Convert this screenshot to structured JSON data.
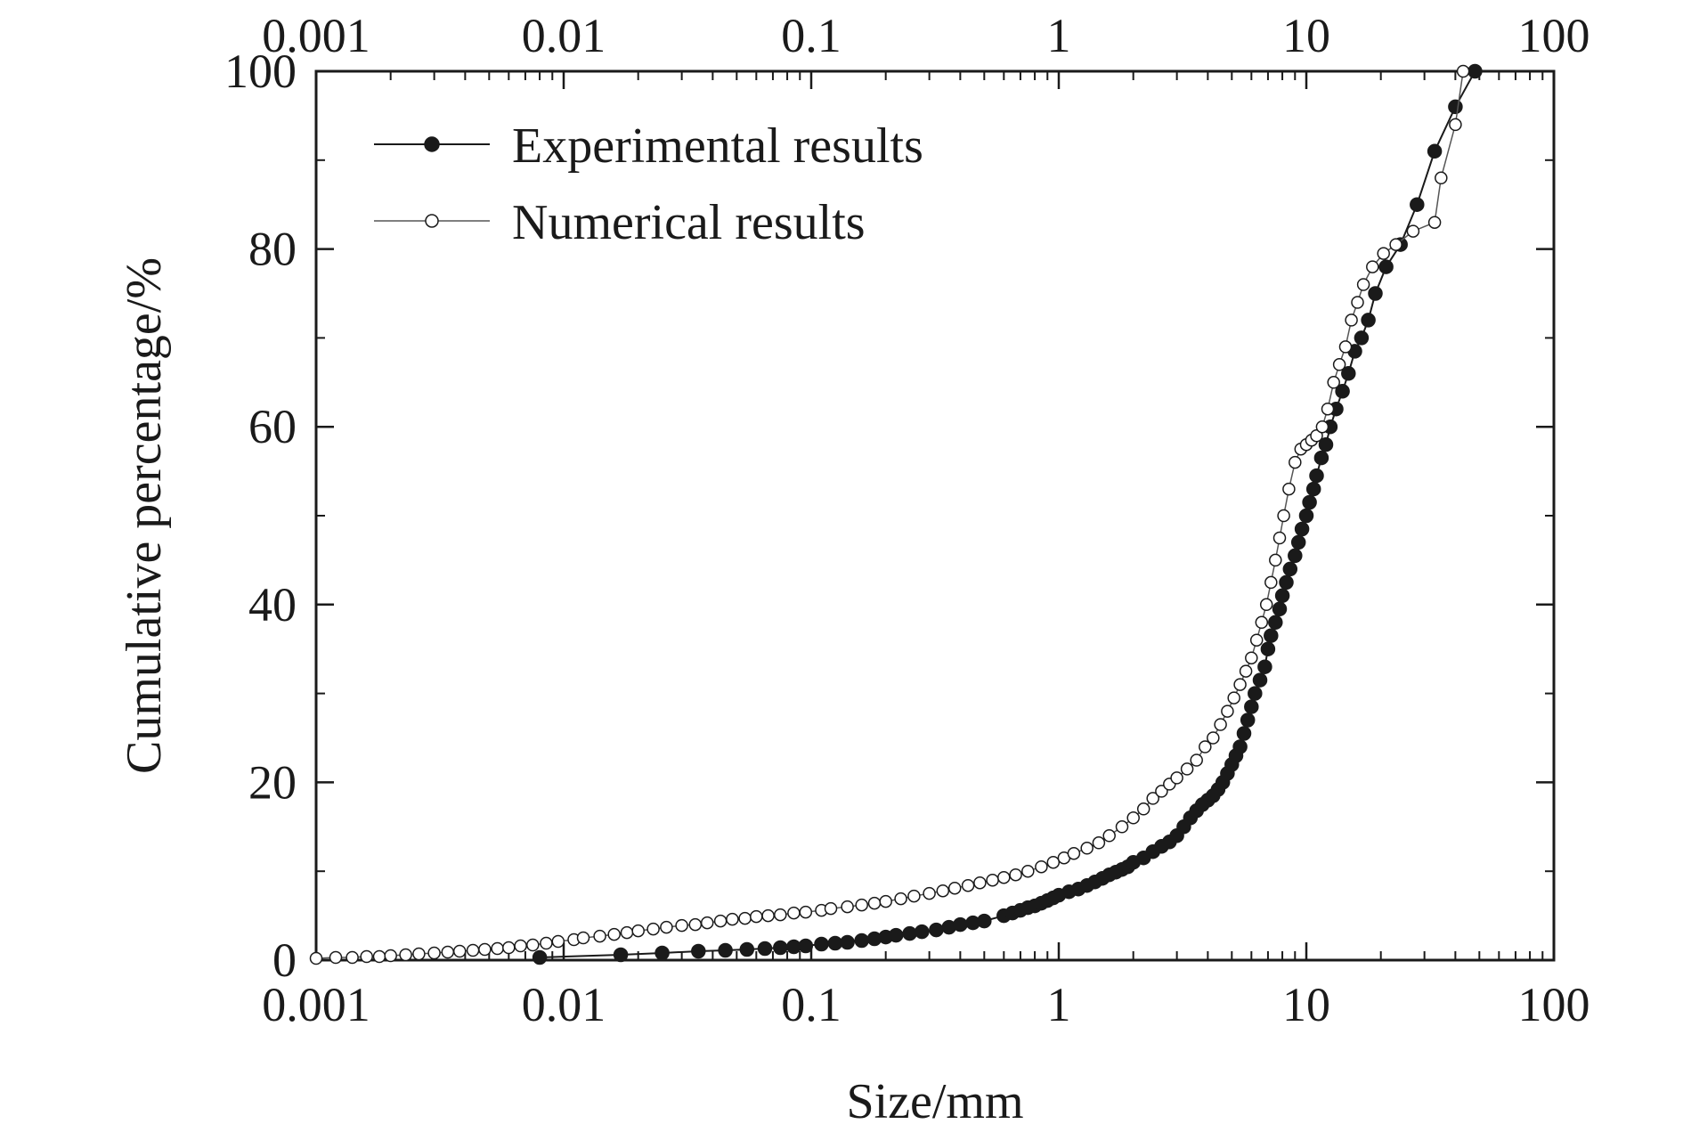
{
  "chart_data": {
    "type": "scatter",
    "title": "",
    "xlabel": "Size/mm",
    "ylabel": "Cumulative percentage/%",
    "x_scale": "log",
    "xlim": [
      0.001,
      100
    ],
    "ylim": [
      0,
      100
    ],
    "x_ticks": [
      "0.001",
      "0.01",
      "0.1",
      "1",
      "10",
      "100"
    ],
    "y_ticks": [
      "0",
      "20",
      "40",
      "60",
      "80",
      "100"
    ],
    "top_axis_labels": true,
    "grid": false,
    "legend_position": "top-left",
    "series": [
      {
        "name": "Experimental results",
        "marker": "filled-circle",
        "color": "#1a1a1a",
        "x": [
          0.008,
          0.017,
          0.025,
          0.035,
          0.045,
          0.055,
          0.065,
          0.075,
          0.085,
          0.095,
          0.11,
          0.125,
          0.14,
          0.16,
          0.18,
          0.2,
          0.22,
          0.25,
          0.28,
          0.32,
          0.36,
          0.4,
          0.45,
          0.5,
          0.6,
          0.65,
          0.7,
          0.75,
          0.8,
          0.85,
          0.9,
          0.95,
          1.0,
          1.1,
          1.2,
          1.3,
          1.4,
          1.5,
          1.6,
          1.7,
          1.8,
          1.9,
          2.0,
          2.2,
          2.4,
          2.6,
          2.8,
          3.0,
          3.2,
          3.4,
          3.6,
          3.8,
          4.0,
          4.2,
          4.4,
          4.6,
          4.8,
          5.0,
          5.2,
          5.4,
          5.6,
          5.8,
          6.0,
          6.2,
          6.5,
          6.8,
          7.0,
          7.2,
          7.5,
          7.8,
          8.0,
          8.3,
          8.6,
          9.0,
          9.3,
          9.6,
          10.0,
          10.3,
          10.7,
          11.0,
          11.5,
          12.0,
          12.5,
          13.2,
          14.0,
          14.8,
          15.7,
          16.7,
          17.8,
          19.0,
          21.0,
          24.0,
          28.0,
          33.0,
          40.0,
          48.0
        ],
        "y": [
          0.3,
          0.6,
          0.8,
          1.0,
          1.1,
          1.2,
          1.3,
          1.4,
          1.5,
          1.6,
          1.8,
          1.9,
          2.0,
          2.2,
          2.4,
          2.6,
          2.8,
          3.0,
          3.2,
          3.4,
          3.7,
          4.0,
          4.2,
          4.4,
          5.0,
          5.3,
          5.6,
          5.9,
          6.1,
          6.4,
          6.7,
          7.0,
          7.3,
          7.7,
          8.0,
          8.4,
          8.8,
          9.2,
          9.6,
          9.9,
          10.2,
          10.5,
          11.0,
          11.5,
          12.2,
          12.8,
          13.3,
          14.0,
          15.0,
          16.0,
          16.8,
          17.5,
          18.0,
          18.5,
          19.2,
          20.0,
          21.0,
          22.0,
          23.0,
          24.0,
          25.5,
          27.0,
          28.5,
          30.0,
          31.5,
          33.0,
          35.0,
          36.5,
          38.0,
          39.5,
          41.0,
          42.5,
          44.0,
          45.5,
          47.0,
          48.5,
          50.0,
          51.5,
          53.0,
          54.5,
          56.5,
          58.0,
          60.0,
          62.0,
          64.0,
          66.0,
          68.5,
          70.0,
          72.0,
          75.0,
          78.0,
          80.5,
          85.0,
          91.0,
          96.0,
          100.0
        ]
      },
      {
        "name": "Numerical results",
        "marker": "open-circle",
        "color": "#1a1a1a",
        "x": [
          0.001,
          0.0012,
          0.0014,
          0.0016,
          0.0018,
          0.002,
          0.0023,
          0.0026,
          0.003,
          0.0034,
          0.0038,
          0.0043,
          0.0048,
          0.0054,
          0.006,
          0.0067,
          0.0075,
          0.0085,
          0.0095,
          0.011,
          0.012,
          0.014,
          0.016,
          0.018,
          0.02,
          0.023,
          0.026,
          0.03,
          0.034,
          0.038,
          0.043,
          0.048,
          0.054,
          0.06,
          0.067,
          0.075,
          0.085,
          0.095,
          0.11,
          0.12,
          0.14,
          0.16,
          0.18,
          0.2,
          0.23,
          0.26,
          0.3,
          0.34,
          0.38,
          0.43,
          0.48,
          0.54,
          0.6,
          0.67,
          0.75,
          0.85,
          0.95,
          1.05,
          1.15,
          1.3,
          1.45,
          1.6,
          1.8,
          2.0,
          2.2,
          2.4,
          2.6,
          2.8,
          3.0,
          3.3,
          3.6,
          3.9,
          4.2,
          4.5,
          4.8,
          5.1,
          5.4,
          5.7,
          6.0,
          6.3,
          6.6,
          6.9,
          7.2,
          7.5,
          7.8,
          8.1,
          8.5,
          9.0,
          9.5,
          10.0,
          10.5,
          11.0,
          11.6,
          12.2,
          12.9,
          13.6,
          14.4,
          15.2,
          16.1,
          17.0,
          18.5,
          20.5,
          23.0,
          27.0,
          33.0,
          35.0,
          40.0,
          43.0
        ],
        "y": [
          0.2,
          0.3,
          0.3,
          0.4,
          0.4,
          0.5,
          0.6,
          0.7,
          0.8,
          0.9,
          1.0,
          1.1,
          1.2,
          1.3,
          1.4,
          1.6,
          1.7,
          1.9,
          2.1,
          2.3,
          2.5,
          2.7,
          2.9,
          3.1,
          3.3,
          3.5,
          3.7,
          3.9,
          4.0,
          4.2,
          4.4,
          4.6,
          4.7,
          4.9,
          5.0,
          5.1,
          5.3,
          5.4,
          5.6,
          5.8,
          6.0,
          6.2,
          6.4,
          6.6,
          6.9,
          7.2,
          7.5,
          7.8,
          8.1,
          8.4,
          8.7,
          9.0,
          9.3,
          9.6,
          10.0,
          10.5,
          11.0,
          11.5,
          12.0,
          12.6,
          13.2,
          14.0,
          15.0,
          16.0,
          17.0,
          18.2,
          19.0,
          19.8,
          20.5,
          21.5,
          22.5,
          24.0,
          25.0,
          26.5,
          28.0,
          29.5,
          31.0,
          32.5,
          34.0,
          36.0,
          38.0,
          40.0,
          42.5,
          45.0,
          47.5,
          50.0,
          53.0,
          56.0,
          57.5,
          58.0,
          58.5,
          59.0,
          60.0,
          62.0,
          65.0,
          67.0,
          69.0,
          72.0,
          74.0,
          76.0,
          78.0,
          79.5,
          80.5,
          82.0,
          83.0,
          88.0,
          94.0,
          100.0
        ]
      }
    ]
  }
}
